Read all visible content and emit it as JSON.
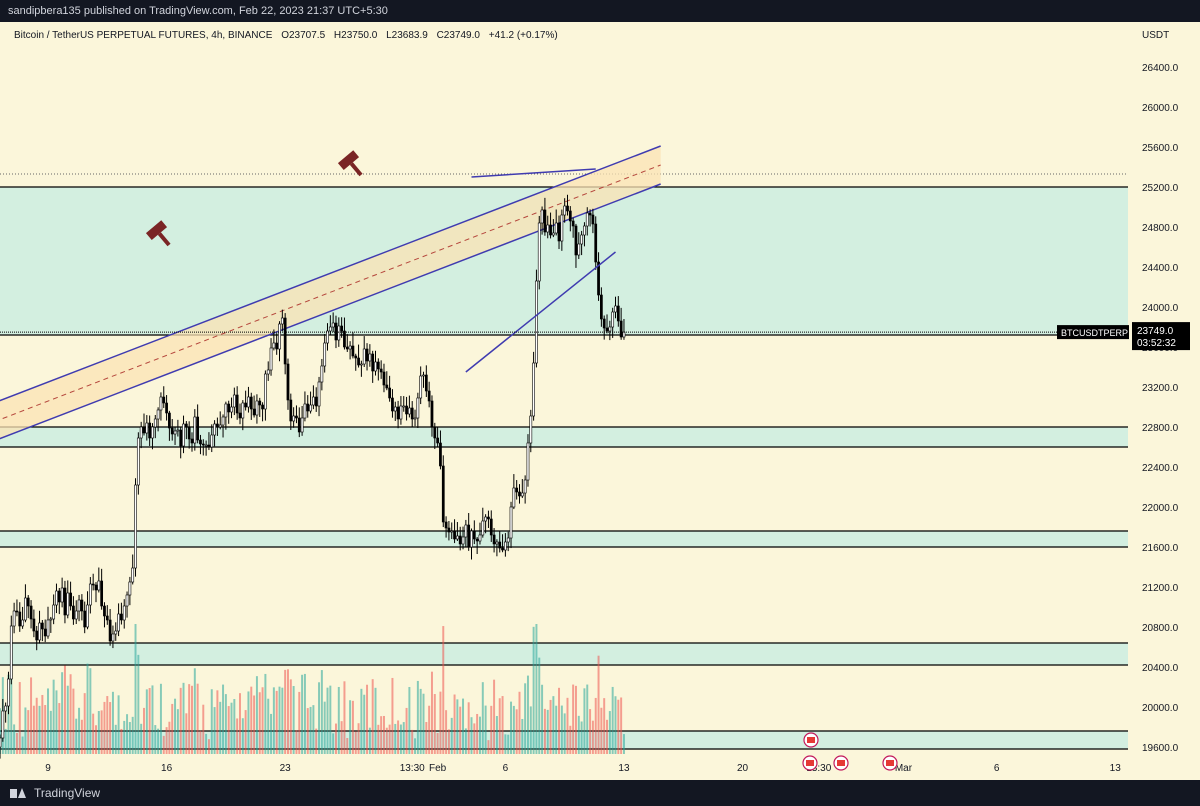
{
  "header": {
    "published": "sandipbera135 published on TradingView.com, Feb 22, 2023 21:37 UTC+5:30"
  },
  "legend": {
    "symbol": "Bitcoin / TetherUS PERPETUAL FUTURES, 4h, BINANCE",
    "open": "O23707.5",
    "high": "H23750.0",
    "low": "L23683.9",
    "close": "C23749.0",
    "change": "+41.2 (+0.17%)"
  },
  "price_label": {
    "ticker": "BTCUSDTPERP",
    "price": "23749.0",
    "countdown": "03:52:32"
  },
  "footer": {
    "brand": "TradingView"
  },
  "colors": {
    "background": "#fbf6da",
    "zone": "#d3efe0",
    "channel_fill": "#fbe3b4",
    "channel_line": "#3f3bb0",
    "bull": "#26a69a",
    "bear": "#ef5350",
    "hammer": "#7a2525"
  },
  "chart_data": {
    "type": "candlestick",
    "title": "Bitcoin / TetherUS PERPETUAL FUTURES, 4h, BINANCE",
    "currency": "USDT",
    "y_ticks": [
      "19600.0",
      "20000.0",
      "20400.0",
      "20800.0",
      "21200.0",
      "21600.0",
      "22000.0",
      "22400.0",
      "22800.0",
      "23200.0",
      "23600.0",
      "24000.0",
      "24400.0",
      "24800.0",
      "25200.0",
      "25600.0",
      "26000.0",
      "26400.0"
    ],
    "ylim": [
      19500,
      26850
    ],
    "x_ticks": [
      "9",
      "16",
      "23",
      "13:30",
      "Feb",
      "6",
      "13",
      "20",
      "13:30",
      "Mar",
      "6",
      "13"
    ],
    "zones": [
      {
        "low": 23720,
        "high": 25200
      },
      {
        "low": 22600,
        "high": 22800
      },
      {
        "low": 21600,
        "high": 21760
      },
      {
        "low": 20420,
        "high": 20640
      },
      {
        "low": 19580,
        "high": 19760
      }
    ],
    "dotted_level": 25330,
    "channel": {
      "from": {
        "bar": 0,
        "price": 22820
      },
      "to": {
        "bar": 239,
        "price": 25420
      },
      "width": 380
    },
    "wedge_lines": [
      {
        "from": {
          "bar": 170,
          "price": 23350
        },
        "to": {
          "bar": 223,
          "price": 24550
        }
      },
      {
        "from": {
          "bar": 172,
          "price": 25300
        },
        "to": {
          "bar": 216,
          "price": 25380
        }
      }
    ],
    "hammers": [
      {
        "bar": -6,
        "price": 23600
      },
      {
        "bar": 61,
        "price": 24750
      },
      {
        "bar": 129,
        "price": 25450
      }
    ],
    "bars_before_first_tick": 22,
    "bars_per_day": 6,
    "projection_days": 32,
    "closes": [
      19480,
      19450,
      19495,
      19460,
      19600,
      19690,
      19960,
      20010,
      20280,
      20810,
      20960,
      20950,
      20810,
      20870,
      21090,
      21010,
      20880,
      20760,
      20670,
      20840,
      20780,
      20710,
      20870,
      20880,
      21020,
      21160,
      21050,
      21190,
      20920,
      21140,
      21010,
      20880,
      20960,
      21070,
      20960,
      20800,
      21020,
      21230,
      21220,
      21170,
      21260,
      21010,
      20910,
      20870,
      20660,
      20730,
      20760,
      20930,
      20870,
      21010,
      21120,
      21250,
      21390,
      22220,
      22690,
      22800,
      22740,
      22840,
      22690,
      22800,
      22880,
      22970,
      23100,
      23040,
      22940,
      22790,
      22730,
      22760,
      22770,
      22610,
      22830,
      22800,
      22680,
      22640,
      22900,
      22670,
      22630,
      22620,
      22620,
      22600,
      22720,
      22830,
      22800,
      22820,
      22900,
      23030,
      22950,
      23000,
      23120,
      22940,
      22890,
      23040,
      23000,
      23100,
      22980,
      22920,
      23060,
      23020,
      22980,
      23330,
      23370,
      23590,
      23640,
      23580,
      23830,
      23890,
      23430,
      23070,
      22860,
      22910,
      22890,
      22750,
      22890,
      23030,
      22960,
      23020,
      23100,
      23010,
      23250,
      23410,
      23640,
      23760,
      23800,
      23840,
      23670,
      23810,
      23760,
      23600,
      23580,
      23610,
      23510,
      23490,
      23420,
      23430,
      23580,
      23460,
      23530,
      23360,
      23450,
      23380,
      23350,
      23220,
      23190,
      23090,
      22960,
      23000,
      22880,
      23010,
      23010,
      22930,
      22990,
      22880,
      22890,
      23090,
      23310,
      23320,
      23160,
      23060,
      22800,
      22690,
      22640,
      22410,
      21850,
      21790,
      21750,
      21760,
      21680,
      21710,
      21630,
      21700,
      21820,
      21600,
      21760,
      21680,
      21660,
      21720,
      21860,
      21900,
      21880,
      21720,
      21630,
      21650,
      21590,
      21570,
      21650,
      21690,
      22000,
      22190,
      22150,
      22110,
      22140,
      22270,
      22640,
      22910,
      23440,
      24260,
      24840,
      24970,
      24750,
      24820,
      24720,
      24740,
      24840,
      24660,
      24920,
      25010,
      24960,
      24860,
      24810,
      24520,
      24630,
      24720,
      24810,
      24940,
      24920,
      24830,
      24450,
      24120,
      23880,
      23790,
      23760,
      23800,
      23950,
      24010,
      23860,
      23700,
      23749
    ]
  }
}
